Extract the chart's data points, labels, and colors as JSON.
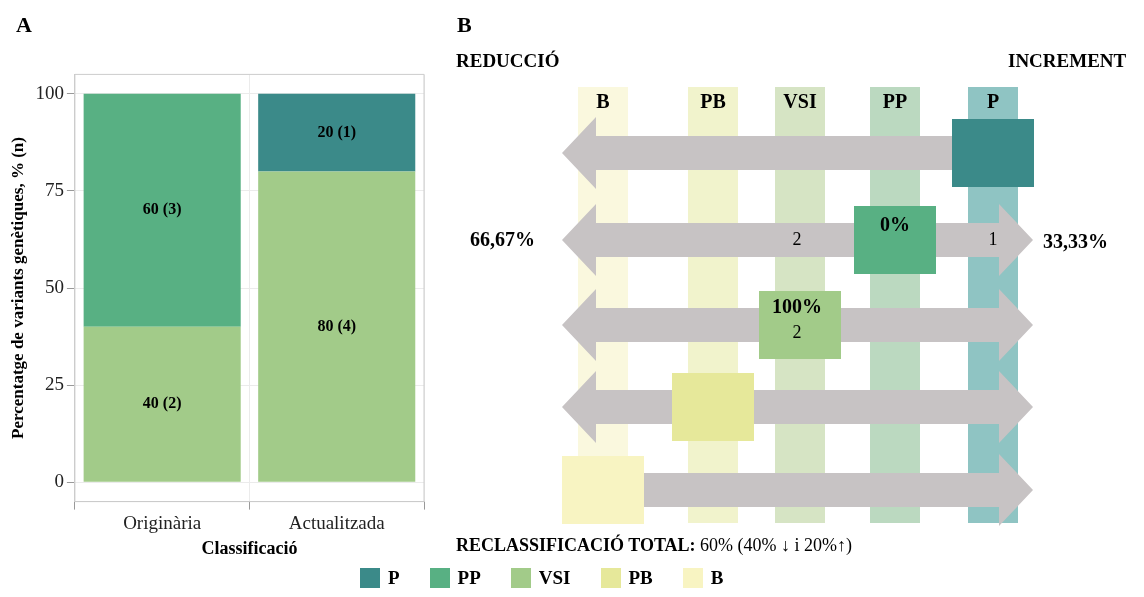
{
  "chart_data": [
    {
      "type": "bar",
      "title": "A",
      "xlabel": "Classificació",
      "ylabel": "Percentatge de variants genètiques, % (n)",
      "categories": [
        "Originària",
        "Actualitzada"
      ],
      "stacked": true,
      "ylim": [
        -5,
        105
      ],
      "yticks": [
        0,
        25,
        50,
        75,
        100
      ],
      "grid": true,
      "legend": "bottom",
      "series": [
        {
          "name": "B",
          "color": "#f8f4c2",
          "values": [
            null,
            null
          ],
          "value_labels": [
            null,
            null
          ]
        },
        {
          "name": "PB",
          "color": "#e6e89a",
          "values": [
            null,
            null
          ],
          "value_labels": [
            null,
            null
          ]
        },
        {
          "name": "VSI",
          "color": "#a2cb89",
          "values": [
            40,
            80
          ],
          "value_labels": [
            "40 (2)",
            "80 (4)"
          ]
        },
        {
          "name": "PP",
          "color": "#58b083",
          "values": [
            60,
            null
          ],
          "value_labels": [
            "60 (3)",
            null
          ]
        },
        {
          "name": "P",
          "color": "#3b8a89",
          "values": [
            null,
            20
          ],
          "value_labels": [
            null,
            "20 (1)"
          ]
        }
      ]
    },
    {
      "type": "other",
      "title": "B",
      "categories": [
        "B",
        "PB",
        "VSI",
        "PP",
        "P"
      ],
      "colors": [
        "#faf8de",
        "#f1f3cc",
        "#d6e4c4",
        "#bbd9c0",
        "#8fc4c3"
      ],
      "annotations": [
        "REDUCCIÓ",
        "INCREMENT",
        "66,67%",
        "2",
        "0%",
        "1",
        "33,33%",
        "100%",
        "2",
        "RECLASSIFICACIÓ TOTAL: 60% (40% ↓ i 20%↑)"
      ]
    }
  ]
}
